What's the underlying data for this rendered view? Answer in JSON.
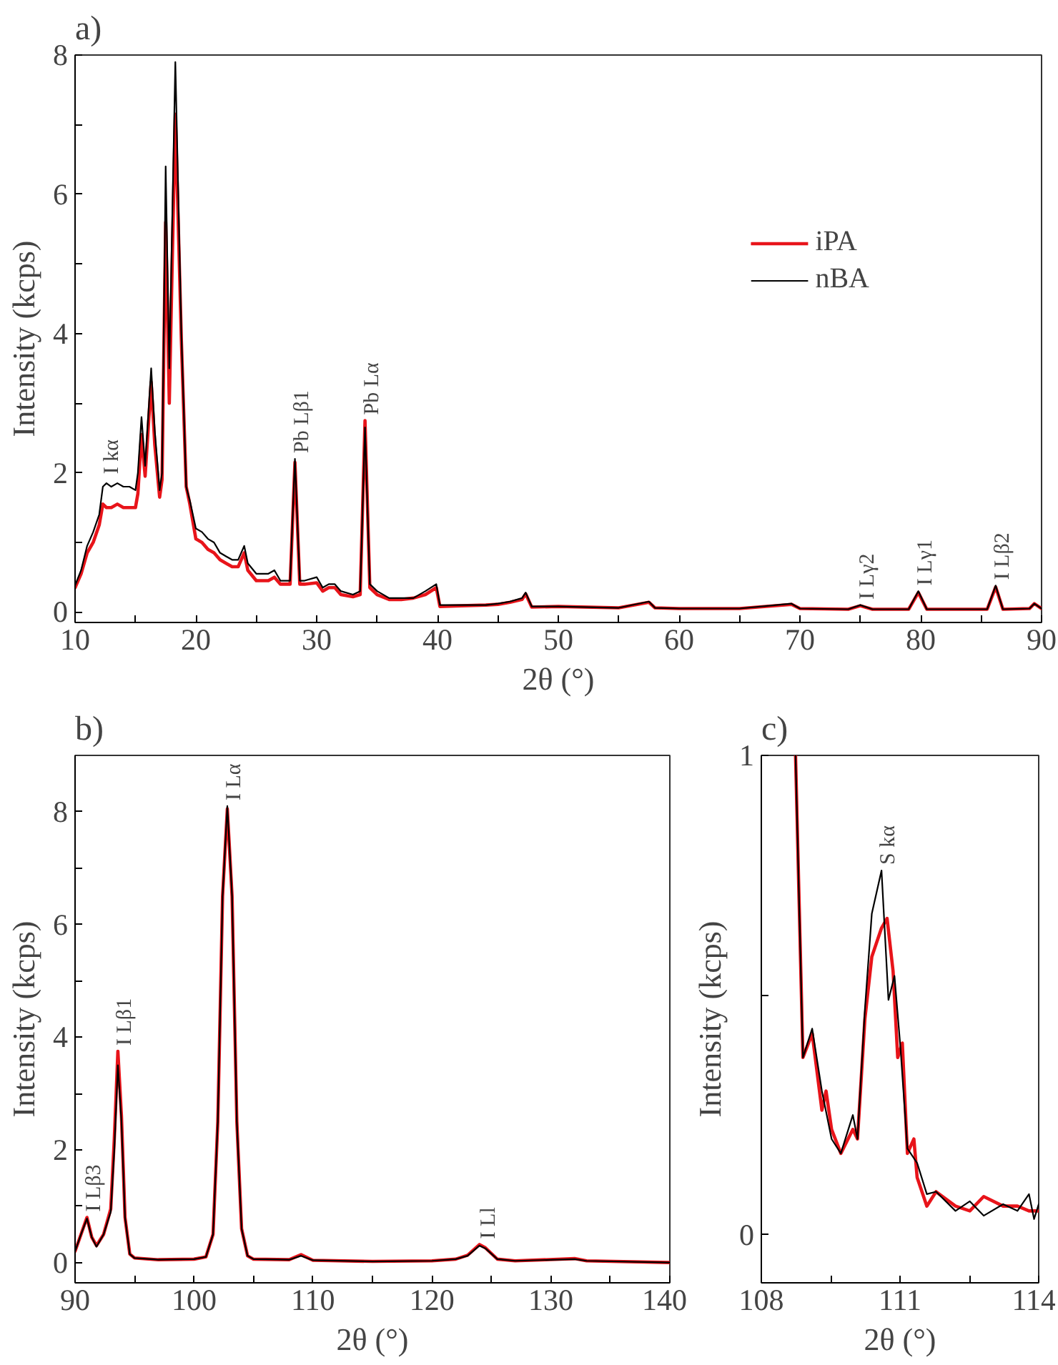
{
  "chart_data": [
    {
      "type": "line",
      "title": "a)",
      "xlabel": "2θ (°)",
      "ylabel": "Intensity (kcps)",
      "legend": "top right",
      "grid": false,
      "xlim": [
        10,
        90
      ],
      "ylim": [
        -0.15,
        8
      ],
      "xticks": [
        10,
        {
          "value": 15,
          "label": null
        },
        20,
        {
          "value": 25,
          "label": null
        },
        30,
        {
          "value": 35,
          "label": null
        },
        40,
        {
          "value": 45,
          "label": null
        },
        50,
        {
          "value": 55,
          "label": null
        },
        60,
        {
          "value": 65,
          "label": null
        },
        70,
        {
          "value": 75,
          "label": null
        },
        80,
        {
          "value": 85,
          "label": null
        },
        90
      ],
      "yticks": [
        0,
        {
          "value": 1,
          "label": null
        },
        2,
        {
          "value": 3,
          "label": null
        },
        4,
        {
          "value": 5,
          "label": null
        },
        6,
        {
          "value": 7,
          "label": null
        },
        8
      ],
      "x": [
        10,
        10.5,
        11,
        11.5,
        12,
        12.3,
        12.6,
        13,
        13.5,
        14,
        14.5,
        15,
        15.2,
        15.5,
        15.8,
        16.3,
        16.6,
        17.0,
        17.2,
        17.5,
        17.8,
        18.3,
        18.8,
        19.2,
        19.5,
        20,
        20.5,
        21,
        21.5,
        22,
        22.5,
        23,
        23.5,
        24,
        24.3,
        25,
        26,
        26.5,
        27,
        27.8,
        28.2,
        28.6,
        29,
        30,
        30.5,
        31,
        31.5,
        32,
        33,
        33.6,
        34,
        34.4,
        35,
        36,
        37,
        38,
        39,
        39.9,
        40.2,
        42,
        44,
        45,
        46,
        47,
        47.3,
        47.8,
        50,
        55,
        57.5,
        58,
        60,
        65,
        69.3,
        70,
        74,
        75,
        76,
        79,
        79.8,
        80.5,
        85.5,
        86.2,
        86.8,
        89,
        89.4,
        90
      ],
      "series": [
        {
          "name": "iPA",
          "color": "#e8141a",
          "values": [
            0.35,
            0.55,
            0.85,
            1.0,
            1.25,
            1.55,
            1.5,
            1.5,
            1.55,
            1.5,
            1.5,
            1.5,
            1.7,
            2.55,
            1.95,
            3.3,
            2.4,
            1.65,
            1.9,
            5.6,
            3.0,
            7.15,
            3.9,
            1.8,
            1.55,
            1.05,
            1.0,
            0.9,
            0.85,
            0.75,
            0.7,
            0.65,
            0.65,
            0.85,
            0.6,
            0.45,
            0.45,
            0.5,
            0.4,
            0.4,
            2.15,
            0.4,
            0.4,
            0.42,
            0.3,
            0.35,
            0.35,
            0.25,
            0.22,
            0.25,
            2.75,
            0.35,
            0.25,
            0.18,
            0.18,
            0.2,
            0.25,
            0.35,
            0.08,
            0.09,
            0.1,
            0.11,
            0.14,
            0.18,
            0.26,
            0.07,
            0.08,
            0.06,
            0.14,
            0.06,
            0.05,
            0.05,
            0.11,
            0.05,
            0.04,
            0.09,
            0.04,
            0.04,
            0.28,
            0.04,
            0.04,
            0.36,
            0.04,
            0.05,
            0.12,
            0.05
          ]
        },
        {
          "name": "nBA",
          "color": "#000000",
          "values": [
            0.38,
            0.6,
            0.95,
            1.15,
            1.4,
            1.8,
            1.85,
            1.8,
            1.85,
            1.8,
            1.8,
            1.75,
            2.0,
            2.8,
            2.1,
            3.5,
            2.6,
            1.75,
            2.0,
            6.4,
            3.5,
            7.9,
            4.0,
            1.8,
            1.6,
            1.2,
            1.15,
            1.05,
            1.0,
            0.85,
            0.8,
            0.75,
            0.75,
            0.95,
            0.7,
            0.55,
            0.55,
            0.6,
            0.45,
            0.45,
            2.2,
            0.45,
            0.45,
            0.5,
            0.35,
            0.4,
            0.4,
            0.3,
            0.25,
            0.3,
            2.65,
            0.4,
            0.3,
            0.2,
            0.2,
            0.2,
            0.3,
            0.4,
            0.1,
            0.1,
            0.1,
            0.12,
            0.15,
            0.2,
            0.28,
            0.08,
            0.08,
            0.06,
            0.15,
            0.06,
            0.05,
            0.05,
            0.12,
            0.05,
            0.04,
            0.1,
            0.04,
            0.04,
            0.3,
            0.04,
            0.04,
            0.38,
            0.04,
            0.05,
            0.12,
            0.05
          ]
        }
      ],
      "annotations": [
        {
          "text": "I kα",
          "x": 12.5,
          "y": 1.9
        },
        {
          "text": "Pb Lβ1",
          "x": 28.2,
          "y": 2.2
        },
        {
          "text": "Pb Lα",
          "x": 34,
          "y": 2.75
        },
        {
          "text": "I Lγ2",
          "x": 75,
          "y": 0.1
        },
        {
          "text": "I Lγ1",
          "x": 79.8,
          "y": 0.3
        },
        {
          "text": "I Lβ2",
          "x": 86.2,
          "y": 0.38
        }
      ]
    },
    {
      "type": "line",
      "title": "b)",
      "xlabel": "2θ (°)",
      "ylabel": "Intensity (kcps)",
      "grid": false,
      "xlim": [
        90,
        140
      ],
      "ylim": [
        -0.36,
        9
      ],
      "xticks": [
        90,
        {
          "value": 95,
          "label": null
        },
        100,
        {
          "value": 105,
          "label": null
        },
        110,
        {
          "value": 115,
          "label": null
        },
        120,
        {
          "value": 125,
          "label": null
        },
        130,
        {
          "value": 135,
          "label": null
        },
        140
      ],
      "yticks": [
        0,
        {
          "value": 1,
          "label": null
        },
        2,
        {
          "value": 3,
          "label": null
        },
        4,
        {
          "value": 5,
          "label": null
        },
        6,
        {
          "value": 7,
          "label": null
        },
        8
      ],
      "x": [
        90,
        90.5,
        91.0,
        91.4,
        91.8,
        92.4,
        93.0,
        93.3,
        93.6,
        93.9,
        94.2,
        94.6,
        95,
        97,
        100,
        101,
        101.6,
        102.0,
        102.4,
        102.8,
        103.2,
        103.6,
        104.0,
        104.5,
        105,
        108,
        109,
        110,
        115,
        120,
        122,
        123,
        124,
        124.5,
        125.5,
        127,
        132,
        133,
        140
      ],
      "series": [
        {
          "color": "#e8141a",
          "values": [
            0.2,
            0.5,
            0.8,
            0.45,
            0.3,
            0.5,
            0.95,
            2.2,
            3.75,
            2.6,
            0.8,
            0.15,
            0.08,
            0.05,
            0.06,
            0.1,
            0.5,
            2.5,
            6.5,
            8.05,
            6.5,
            2.5,
            0.6,
            0.12,
            0.06,
            0.05,
            0.14,
            0.04,
            0.02,
            0.03,
            0.06,
            0.13,
            0.32,
            0.26,
            0.06,
            0.03,
            0.07,
            0.03,
            0.0
          ]
        },
        {
          "color": "#000000",
          "values": [
            0.2,
            0.5,
            0.78,
            0.45,
            0.28,
            0.5,
            0.9,
            2.0,
            3.5,
            2.5,
            0.8,
            0.15,
            0.08,
            0.05,
            0.06,
            0.1,
            0.5,
            2.5,
            6.5,
            8.1,
            6.5,
            2.5,
            0.6,
            0.12,
            0.06,
            0.05,
            0.12,
            0.04,
            0.02,
            0.03,
            0.06,
            0.12,
            0.3,
            0.25,
            0.06,
            0.03,
            0.06,
            0.03,
            0.0
          ]
        }
      ],
      "annotations": [
        {
          "text": "I Lβ3",
          "x": 91.0,
          "y": 0.8
        },
        {
          "text": "I Lβ1",
          "x": 93.6,
          "y": 3.75
        },
        {
          "text": "I Lα",
          "x": 102.8,
          "y": 8.1
        },
        {
          "text": "I Ll",
          "x": 124.2,
          "y": 0.32
        }
      ]
    },
    {
      "type": "line",
      "title": "c)",
      "xlabel": "2θ (°)",
      "ylabel": "Intensity (kcps)",
      "grid": false,
      "xlim": [
        108,
        114
      ],
      "ylim": [
        -0.1,
        1
      ],
      "xticks": [
        108,
        {
          "value": 109.5,
          "label": null
        },
        111,
        {
          "value": 112.5,
          "label": null
        },
        114
      ],
      "yticks": [
        0,
        {
          "value": 0.5,
          "label": null
        },
        1
      ],
      "series": [
        {
          "color": "#e8141a",
          "x": [
            108.74,
            108.9,
            109.1,
            109.31,
            109.4,
            109.52,
            109.72,
            109.98,
            110.08,
            110.24,
            110.39,
            110.6,
            110.72,
            110.85,
            110.95,
            111.05,
            111.16,
            111.3,
            111.37,
            111.58,
            111.78,
            112.2,
            112.51,
            112.81,
            113.23,
            113.54,
            113.79,
            114.0
          ],
          "values": [
            1.0,
            0.37,
            0.42,
            0.26,
            0.3,
            0.22,
            0.17,
            0.22,
            0.2,
            0.45,
            0.58,
            0.64,
            0.66,
            0.55,
            0.37,
            0.4,
            0.17,
            0.2,
            0.12,
            0.06,
            0.09,
            0.06,
            0.05,
            0.08,
            0.06,
            0.06,
            0.05,
            0.05
          ]
        },
        {
          "color": "#000000",
          "x": [
            108.74,
            108.9,
            109.1,
            109.31,
            109.52,
            109.72,
            109.98,
            110.08,
            110.24,
            110.39,
            110.6,
            110.75,
            110.88,
            111.01,
            111.16,
            111.37,
            111.58,
            111.78,
            112.2,
            112.51,
            112.81,
            113.23,
            113.54,
            113.79,
            113.9,
            114.0
          ],
          "values": [
            1.0,
            0.37,
            0.43,
            0.3,
            0.2,
            0.17,
            0.25,
            0.2,
            0.47,
            0.67,
            0.76,
            0.49,
            0.54,
            0.39,
            0.18,
            0.15,
            0.085,
            0.09,
            0.05,
            0.07,
            0.04,
            0.064,
            0.05,
            0.085,
            0.033,
            0.064
          ]
        }
      ],
      "annotations": [
        {
          "text": "S kα",
          "x": 110.6,
          "y": 0.76
        }
      ]
    }
  ]
}
